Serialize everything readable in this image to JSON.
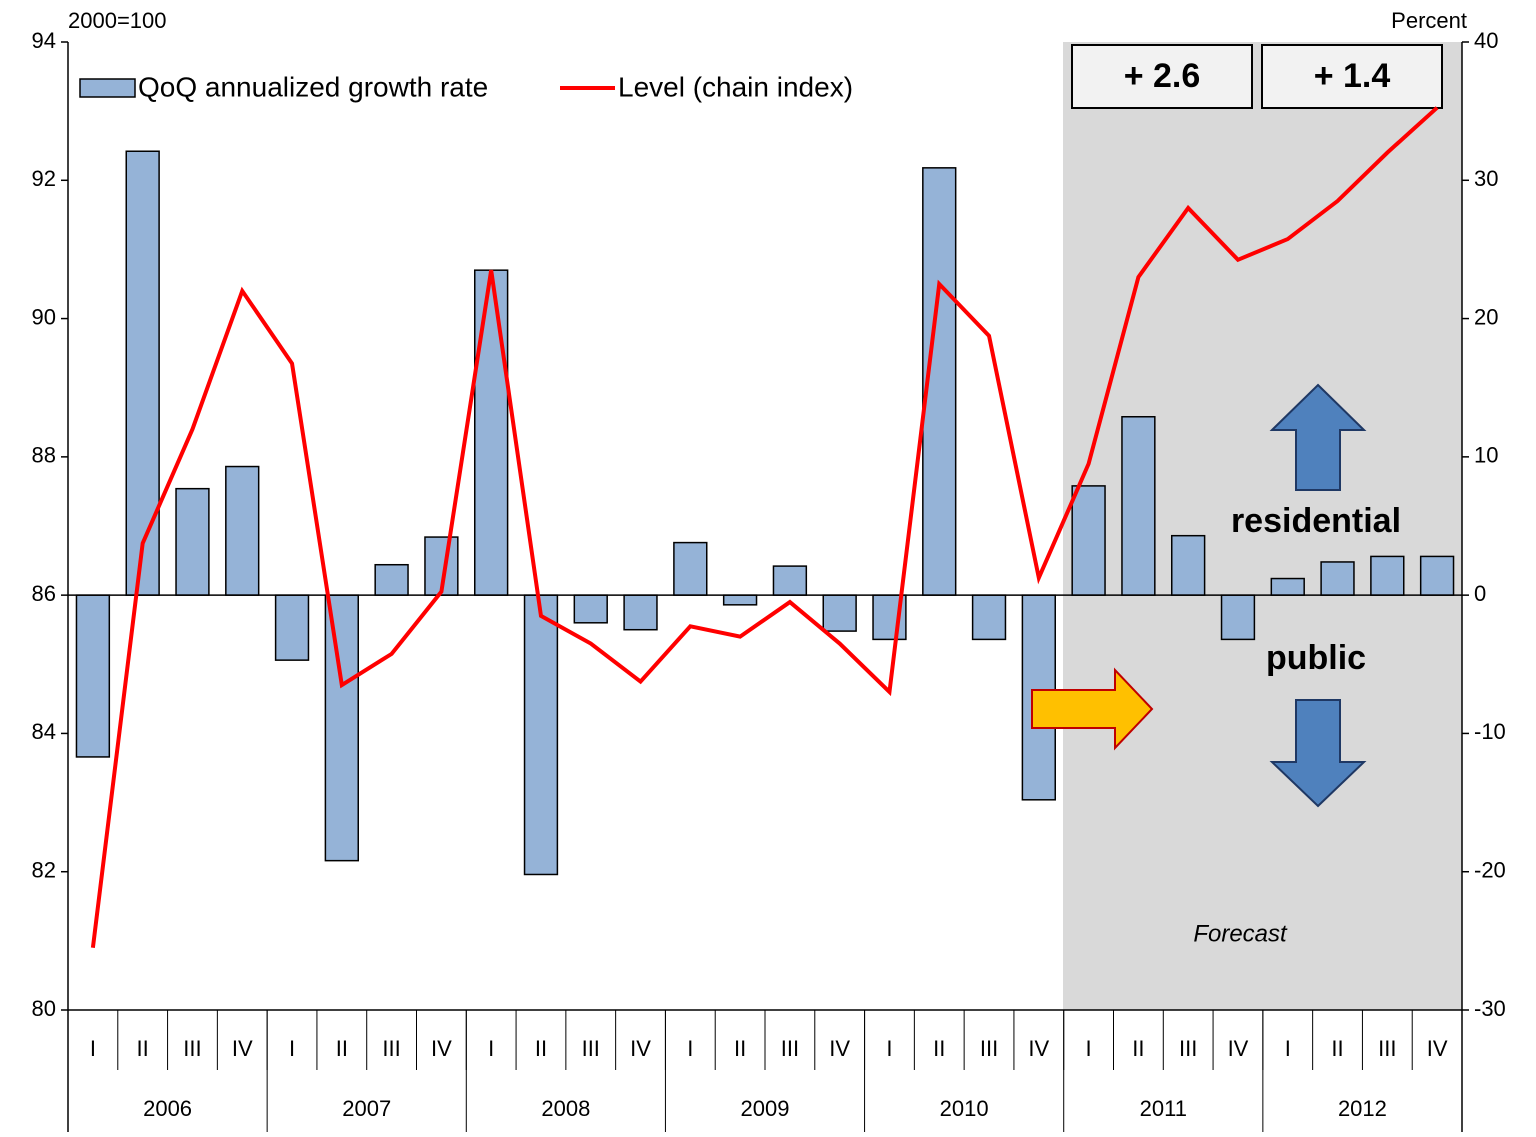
{
  "chart_data": {
    "type": "combo",
    "ylabel": "2000=100",
    "y2label": "Percent",
    "categories": [
      "I",
      "II",
      "III",
      "IV",
      "I",
      "II",
      "III",
      "IV",
      "I",
      "II",
      "III",
      "IV",
      "I",
      "II",
      "III",
      "IV",
      "I",
      "II",
      "III",
      "IV",
      "I",
      "II",
      "III",
      "IV",
      "I",
      "II",
      "III",
      "IV"
    ],
    "years": [
      "2006",
      "2007",
      "2008",
      "2009",
      "2010",
      "2011",
      "2012"
    ],
    "series": [
      {
        "name": "QoQ annualized growth rate",
        "type": "bar",
        "axis": "y2",
        "color": "#95b3d7",
        "values": [
          -11.7,
          32.1,
          7.7,
          9.3,
          -4.7,
          -19.2,
          2.2,
          4.2,
          23.5,
          -20.2,
          -2.0,
          -2.5,
          3.8,
          -0.7,
          2.1,
          -2.6,
          -3.2,
          30.9,
          -3.2,
          -14.8,
          7.9,
          12.9,
          4.3,
          -3.2,
          1.2,
          2.4,
          2.8,
          2.8
        ]
      },
      {
        "name": "Level (chain index)",
        "type": "line",
        "axis": "y",
        "color": "#ff0000",
        "values": [
          80.9,
          86.75,
          88.4,
          90.4,
          89.35,
          84.7,
          85.15,
          86.05,
          90.7,
          85.7,
          85.3,
          84.75,
          85.55,
          85.4,
          85.9,
          85.3,
          84.6,
          90.5,
          89.75,
          86.25,
          87.9,
          90.6,
          91.6,
          90.85,
          91.15,
          91.7,
          92.4,
          93.05
        ]
      }
    ],
    "ylim": [
      80,
      94
    ],
    "yticks": [
      80,
      82,
      84,
      86,
      88,
      90,
      92,
      94
    ],
    "y2lim": [
      -30,
      40
    ],
    "y2ticks": [
      -30,
      -20,
      -10,
      0,
      10,
      20,
      30,
      40
    ],
    "annotations": {
      "box1": "+ 2.6",
      "box2": "+ 1.4",
      "up": "residential",
      "down": "public",
      "forecast": "Forecast"
    }
  }
}
